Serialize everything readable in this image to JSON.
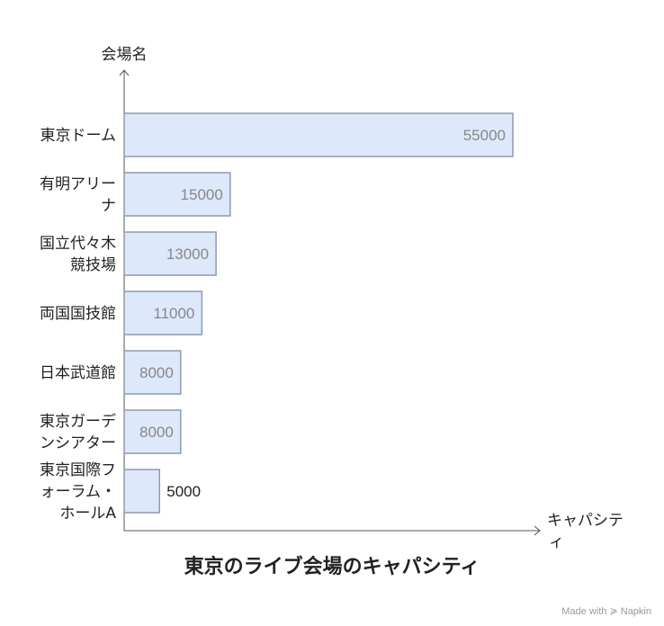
{
  "chart_data": {
    "type": "bar",
    "orientation": "horizontal",
    "title": "東京のライブ会場のキャパシティ",
    "ylabel": "会場名",
    "xlabel": "キャパシティ",
    "xlim": [
      0,
      55000
    ],
    "grid": false,
    "categories": [
      "東京ドーム",
      "有明アリーナ",
      "国立代々木競技場",
      "両国国技館",
      "日本武道館",
      "東京ガーデンシアター",
      "東京国際フォーラム・ホールA"
    ],
    "category_lines": [
      [
        "東京ドーム"
      ],
      [
        "有明アリー",
        "ナ"
      ],
      [
        "国立代々木",
        "競技場"
      ],
      [
        "両国国技館"
      ],
      [
        "日本武道館"
      ],
      [
        "東京ガーデ",
        "ンシアター"
      ],
      [
        "東京国際フ",
        "ォーラム・",
        "ホールA"
      ]
    ],
    "xlabel_lines": [
      "キャパシテ",
      "ィ"
    ],
    "values": [
      55000,
      15000,
      13000,
      11000,
      8000,
      8000,
      5000
    ],
    "value_labels": [
      "55000",
      "15000",
      "13000",
      "11000",
      "8000",
      "8000",
      "5000"
    ]
  },
  "colors": {
    "bar_fill": "#dde8fb",
    "bar_stroke": "#8f9bab",
    "axis": "#555555",
    "label_inside": "#888888",
    "label_outside": "#222222"
  },
  "watermark": "Made with ≽ Napkin"
}
